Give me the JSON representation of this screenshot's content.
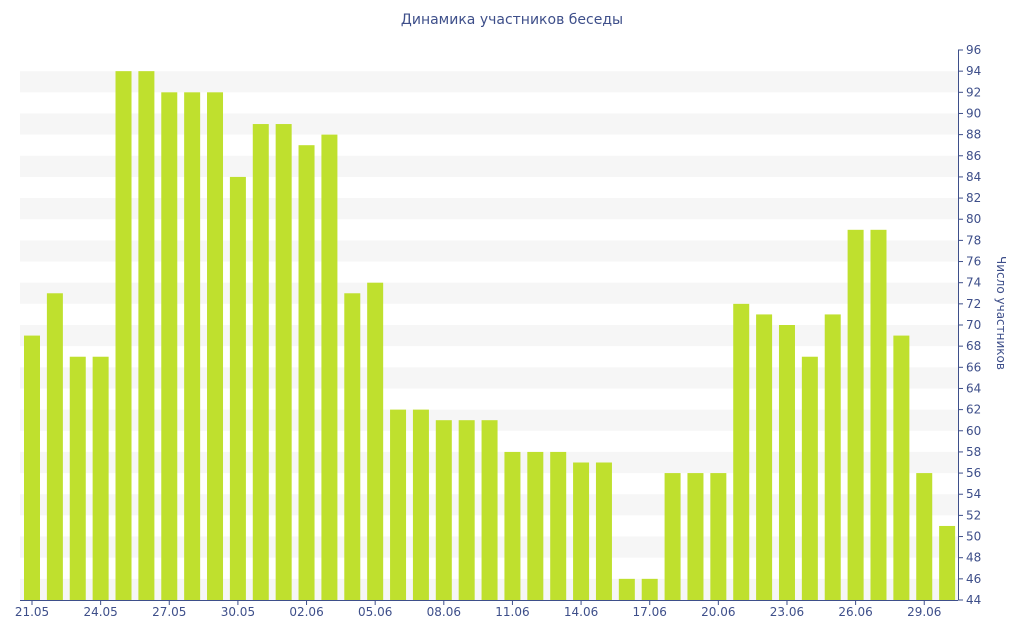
{
  "chart_data": {
    "type": "bar",
    "title": "Динамика участников беседы",
    "ylabel": "Число участников",
    "xlabel": "",
    "ylim": [
      44,
      96
    ],
    "y_ticks": [
      44,
      46,
      48,
      50,
      52,
      54,
      56,
      58,
      60,
      62,
      64,
      66,
      68,
      70,
      72,
      74,
      76,
      78,
      80,
      82,
      84,
      86,
      88,
      90,
      92,
      94,
      96
    ],
    "y_axis_side": "right",
    "categories": [
      "21.05",
      "22.05",
      "23.05",
      "24.05",
      "25.05",
      "26.05",
      "27.05",
      "28.05",
      "29.05",
      "30.05",
      "31.05",
      "01.06",
      "02.06",
      "03.06",
      "04.06",
      "05.06",
      "06.06",
      "07.06",
      "08.06",
      "09.06",
      "10.06",
      "11.06",
      "12.06",
      "13.06",
      "14.06",
      "15.06",
      "16.06",
      "17.06",
      "18.06",
      "19.06",
      "20.06",
      "21.06",
      "22.06",
      "23.06",
      "24.06",
      "25.06",
      "26.06",
      "27.06",
      "28.06",
      "29.06",
      "30.06"
    ],
    "x_tick_labels": [
      "21.05",
      "24.05",
      "27.05",
      "30.05",
      "02.06",
      "05.06",
      "08.06",
      "11.06",
      "14.06",
      "17.06",
      "20.06",
      "23.06",
      "26.06",
      "29.06"
    ],
    "values": [
      69,
      73,
      67,
      67,
      94,
      94,
      92,
      92,
      92,
      84,
      89,
      89,
      87,
      88,
      73,
      74,
      62,
      62,
      61,
      61,
      61,
      58,
      58,
      58,
      57,
      57,
      46,
      46,
      56,
      56,
      56,
      72,
      71,
      70,
      67,
      71,
      79,
      79,
      69,
      56,
      51
    ],
    "bar_color": "#bfe02e",
    "band_color": "#f6f6f6",
    "text_color": "#3e4f8a",
    "grid": "alternating-horizontal-bands",
    "legend": "none"
  }
}
